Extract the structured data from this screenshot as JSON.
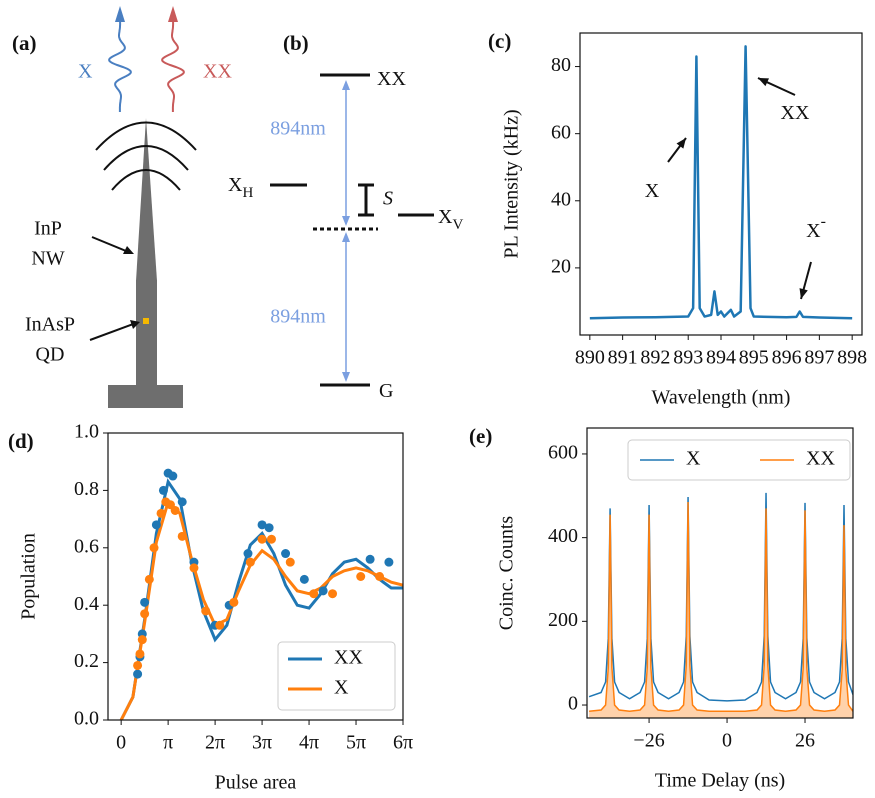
{
  "panel_a": {
    "label": "(a)",
    "photons": [
      "X",
      "XX"
    ],
    "nanowire": [
      "InP",
      "NW"
    ],
    "dot": [
      "InAsP",
      "QD"
    ]
  },
  "panel_b": {
    "label": "(b)",
    "levels": [
      {
        "base": "XX"
      },
      {
        "base": "X",
        "sub": "H"
      },
      {
        "base": "X",
        "sub": "V"
      },
      {
        "base": "G"
      }
    ],
    "splitting": "S",
    "transitions": [
      "894nm",
      "894nm"
    ]
  },
  "chart_data": [
    {
      "label": "(c)",
      "type": "line",
      "xlabel": "Wavelength (nm)",
      "ylabel": "PL Intensity (kHz)",
      "x": [
        890,
        891,
        892,
        893,
        893.15,
        893.25,
        893.35,
        893.5,
        893.7,
        893.8,
        893.9,
        894.0,
        894.1,
        894.3,
        894.4,
        894.6,
        894.75,
        894.9,
        895,
        896,
        896.3,
        896.4,
        896.5,
        897,
        898
      ],
      "values": [
        5,
        5.2,
        5.3,
        5.5,
        8,
        83,
        8,
        5.5,
        6,
        13,
        6,
        7,
        5.5,
        7.5,
        5.5,
        7,
        86,
        8,
        5.5,
        5.3,
        5.4,
        7,
        5.4,
        5.2,
        5
      ],
      "color": "#1f77b4",
      "annotations": [
        {
          "base": "X"
        },
        {
          "base": "XX"
        },
        {
          "base": "X",
          "sup": "-"
        }
      ],
      "xlim": [
        889.7,
        898.3
      ],
      "ylim": [
        0,
        90
      ],
      "xticks": [
        890,
        891,
        892,
        893,
        894,
        895,
        896,
        897,
        898
      ],
      "yticks": [
        20,
        40,
        60,
        80
      ]
    },
    {
      "label": "(d)",
      "type": "scatter_fit",
      "xlabel": "Pulse area",
      "ylabel": "Population",
      "series": [
        {
          "name": "XX",
          "color": "#1f77b4",
          "fit_x": [
            0,
            0.25,
            0.5,
            0.75,
            1,
            1.25,
            1.5,
            1.75,
            2,
            2.25,
            2.5,
            2.75,
            3,
            3.25,
            3.5,
            3.75,
            4,
            4.25,
            4.5,
            4.75,
            5,
            5.25,
            5.5,
            5.75,
            6
          ],
          "fit": [
            0,
            0.08,
            0.35,
            0.65,
            0.83,
            0.77,
            0.55,
            0.38,
            0.28,
            0.33,
            0.48,
            0.61,
            0.65,
            0.58,
            0.47,
            0.4,
            0.39,
            0.44,
            0.51,
            0.55,
            0.56,
            0.53,
            0.49,
            0.46,
            0.46
          ],
          "points_x": [
            0.35,
            0.4,
            0.45,
            0.5,
            0.75,
            0.9,
            1.0,
            1.1,
            1.3,
            1.55,
            2.0,
            2.3,
            2.7,
            3.0,
            3.15,
            3.5,
            3.9,
            4.3,
            5.3,
            5.7
          ],
          "points": [
            0.16,
            0.22,
            0.3,
            0.41,
            0.68,
            0.8,
            0.86,
            0.85,
            0.76,
            0.55,
            0.33,
            0.4,
            0.58,
            0.68,
            0.67,
            0.58,
            0.49,
            0.45,
            0.56,
            0.55
          ]
        },
        {
          "name": "X",
          "color": "#ff7f0e",
          "fit_x": [
            0,
            0.25,
            0.5,
            0.75,
            1,
            1.25,
            1.5,
            1.75,
            2,
            2.25,
            2.5,
            2.75,
            3,
            3.25,
            3.5,
            3.75,
            4,
            4.25,
            4.5,
            4.75,
            5,
            5.25,
            5.5,
            5.75,
            6
          ],
          "fit": [
            0,
            0.08,
            0.34,
            0.62,
            0.76,
            0.72,
            0.56,
            0.42,
            0.33,
            0.35,
            0.45,
            0.54,
            0.59,
            0.56,
            0.5,
            0.45,
            0.44,
            0.46,
            0.5,
            0.52,
            0.53,
            0.52,
            0.5,
            0.48,
            0.47
          ],
          "points_x": [
            0.35,
            0.4,
            0.45,
            0.5,
            0.6,
            0.7,
            0.85,
            0.95,
            1.05,
            1.15,
            1.3,
            1.55,
            1.8,
            2.1,
            2.4,
            2.75,
            3.0,
            3.2,
            3.6,
            4.1,
            4.5,
            5.1,
            5.5
          ],
          "points": [
            0.19,
            0.23,
            0.28,
            0.37,
            0.49,
            0.6,
            0.72,
            0.76,
            0.75,
            0.73,
            0.64,
            0.53,
            0.38,
            0.33,
            0.41,
            0.55,
            0.63,
            0.63,
            0.55,
            0.44,
            0.44,
            0.5,
            0.5
          ]
        }
      ],
      "legend": "lower right",
      "xlim": [
        -0.28,
        6
      ],
      "ylim": [
        0,
        1
      ],
      "xticks": [
        0,
        {
          "value": 1,
          "label": "π"
        },
        {
          "value": 2,
          "label": "2π"
        },
        {
          "value": 3,
          "label": "3π"
        },
        {
          "value": 4,
          "label": "4π"
        },
        {
          "value": 5,
          "label": "5π"
        },
        {
          "value": 6,
          "label": "6π"
        }
      ],
      "yticks": [
        {
          "value": 0,
          "label": "0.0"
        },
        {
          "value": 0.2,
          "label": "0.2"
        },
        {
          "value": 0.4,
          "label": "0.4"
        },
        {
          "value": 0.6,
          "label": "0.6"
        },
        {
          "value": 0.8,
          "label": "0.8"
        },
        {
          "value": 1,
          "label": "1.0"
        }
      ]
    },
    {
      "label": "(e)",
      "type": "histogram_line",
      "xlabel": "Time Delay (ns)",
      "ylabel": "Coinc. Counts",
      "x": [
        -46,
        -42,
        -40.5,
        -39.6,
        -39,
        -38.4,
        -37.5,
        -36,
        -32.5,
        -29,
        -27.5,
        -26.6,
        -26,
        -25.4,
        -24.5,
        -23,
        -19.5,
        -16,
        -14.5,
        -13.6,
        -13,
        -12.4,
        -11.5,
        -10,
        -6,
        0,
        6,
        10,
        11.5,
        12.4,
        13,
        13.6,
        14.5,
        16,
        19.5,
        23,
        24.5,
        25.4,
        26,
        26.6,
        27.5,
        29,
        32.5,
        36,
        37.5,
        38.4,
        39,
        39.6,
        40.5,
        42
      ],
      "series": [
        {
          "name": "X",
          "color": "#1f77b4",
          "values": [
            20,
            30,
            55,
            160,
            470,
            160,
            55,
            30,
            15,
            30,
            55,
            160,
            478,
            160,
            55,
            30,
            15,
            30,
            55,
            165,
            497,
            165,
            55,
            30,
            12,
            10,
            12,
            30,
            55,
            165,
            507,
            165,
            55,
            30,
            15,
            30,
            55,
            160,
            483,
            160,
            55,
            30,
            15,
            30,
            55,
            160,
            478,
            160,
            55,
            25
          ]
        },
        {
          "name": "XX",
          "color": "#ff7f0e",
          "values": [
            -15,
            -12,
            0,
            90,
            455,
            90,
            0,
            -12,
            -15,
            -12,
            0,
            90,
            455,
            90,
            0,
            -12,
            -15,
            -12,
            0,
            95,
            485,
            95,
            0,
            -12,
            -15,
            -15,
            -15,
            -12,
            0,
            95,
            470,
            95,
            0,
            -12,
            -15,
            -12,
            0,
            90,
            465,
            90,
            0,
            -12,
            -15,
            -12,
            0,
            85,
            430,
            85,
            0,
            -15
          ]
        }
      ],
      "legend": "upper center",
      "xlim": [
        -46.7,
        42
      ],
      "ylim": [
        -31,
        662
      ],
      "xticks": [
        {
          "value": -26,
          "label": "−26"
        },
        0,
        26
      ],
      "yticks": [
        0,
        200,
        400,
        600
      ]
    }
  ]
}
